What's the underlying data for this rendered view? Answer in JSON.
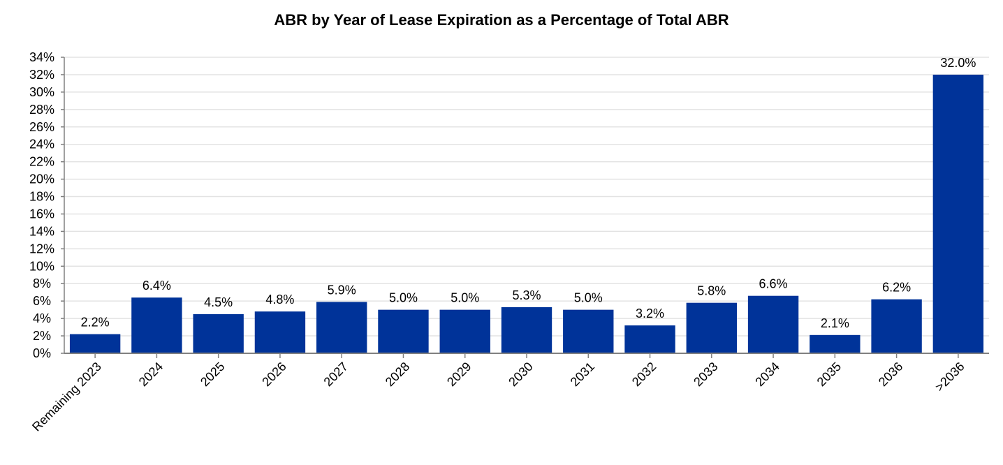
{
  "chart_data": {
    "type": "bar",
    "title": "ABR by Year of Lease Expiration as a Percentage of Total ABR",
    "xlabel": "",
    "ylabel": "",
    "ylim": [
      0,
      34
    ],
    "y_tick_step": 2,
    "y_tick_format": "percent",
    "grid": true,
    "legend": "none",
    "bar_color": "#003399",
    "categories": [
      "Remaining 2023",
      "2024",
      "2025",
      "2026",
      "2027",
      "2028",
      "2029",
      "2030",
      "2031",
      "2032",
      "2033",
      "2034",
      "2035",
      "2036",
      ">2036"
    ],
    "values": [
      2.2,
      6.4,
      4.5,
      4.8,
      5.9,
      5.0,
      5.0,
      5.3,
      5.0,
      3.2,
      5.8,
      6.6,
      2.1,
      6.2,
      32.0
    ],
    "data_labels": [
      "2.2%",
      "6.4%",
      "4.5%",
      "4.8%",
      "5.9%",
      "5.0%",
      "5.0%",
      "5.3%",
      "5.0%",
      "3.2%",
      "5.8%",
      "6.6%",
      "2.1%",
      "6.2%",
      "32.0%"
    ]
  }
}
